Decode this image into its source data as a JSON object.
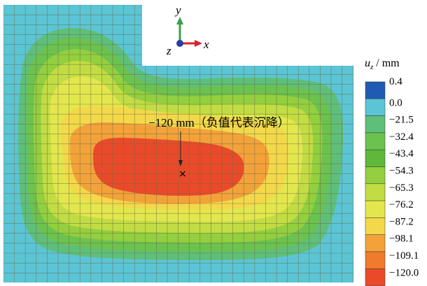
{
  "axis_labels": {
    "y": "y",
    "x": "x",
    "z": "z"
  },
  "annotation": "−120 mm（负值代表沉降）",
  "legend": {
    "title_var": "u",
    "title_sub": "z",
    "title_unit": " / mm",
    "levels": [
      "0.4",
      "0.0",
      "−21.5",
      "−32.4",
      "−43.4",
      "−54.3",
      "−65.3",
      "−76.2",
      "−87.2",
      "−98.1",
      "−109.1",
      "−120.0"
    ],
    "colors": [
      "#1f5bb3",
      "#5bc5d6",
      "#5fbf7a",
      "#6cc24f",
      "#5fb83a",
      "#93cf3f",
      "#c2dc44",
      "#e3e74d",
      "#f3d84a",
      "#f3a23a",
      "#f07b2d",
      "#ea4a2a"
    ]
  },
  "contour_colors": {
    "background": "#5bc5d6",
    "band_1": "#5fbf7a",
    "band_2": "#6cc24f",
    "band_3": "#93cf3f",
    "band_4": "#c2dc44",
    "band_5": "#e3e74d",
    "band_6": "#f3d84a",
    "band_7": "#f3a23a",
    "band_8": "#ea4a2a",
    "mesh": "#6b6b3f"
  }
}
